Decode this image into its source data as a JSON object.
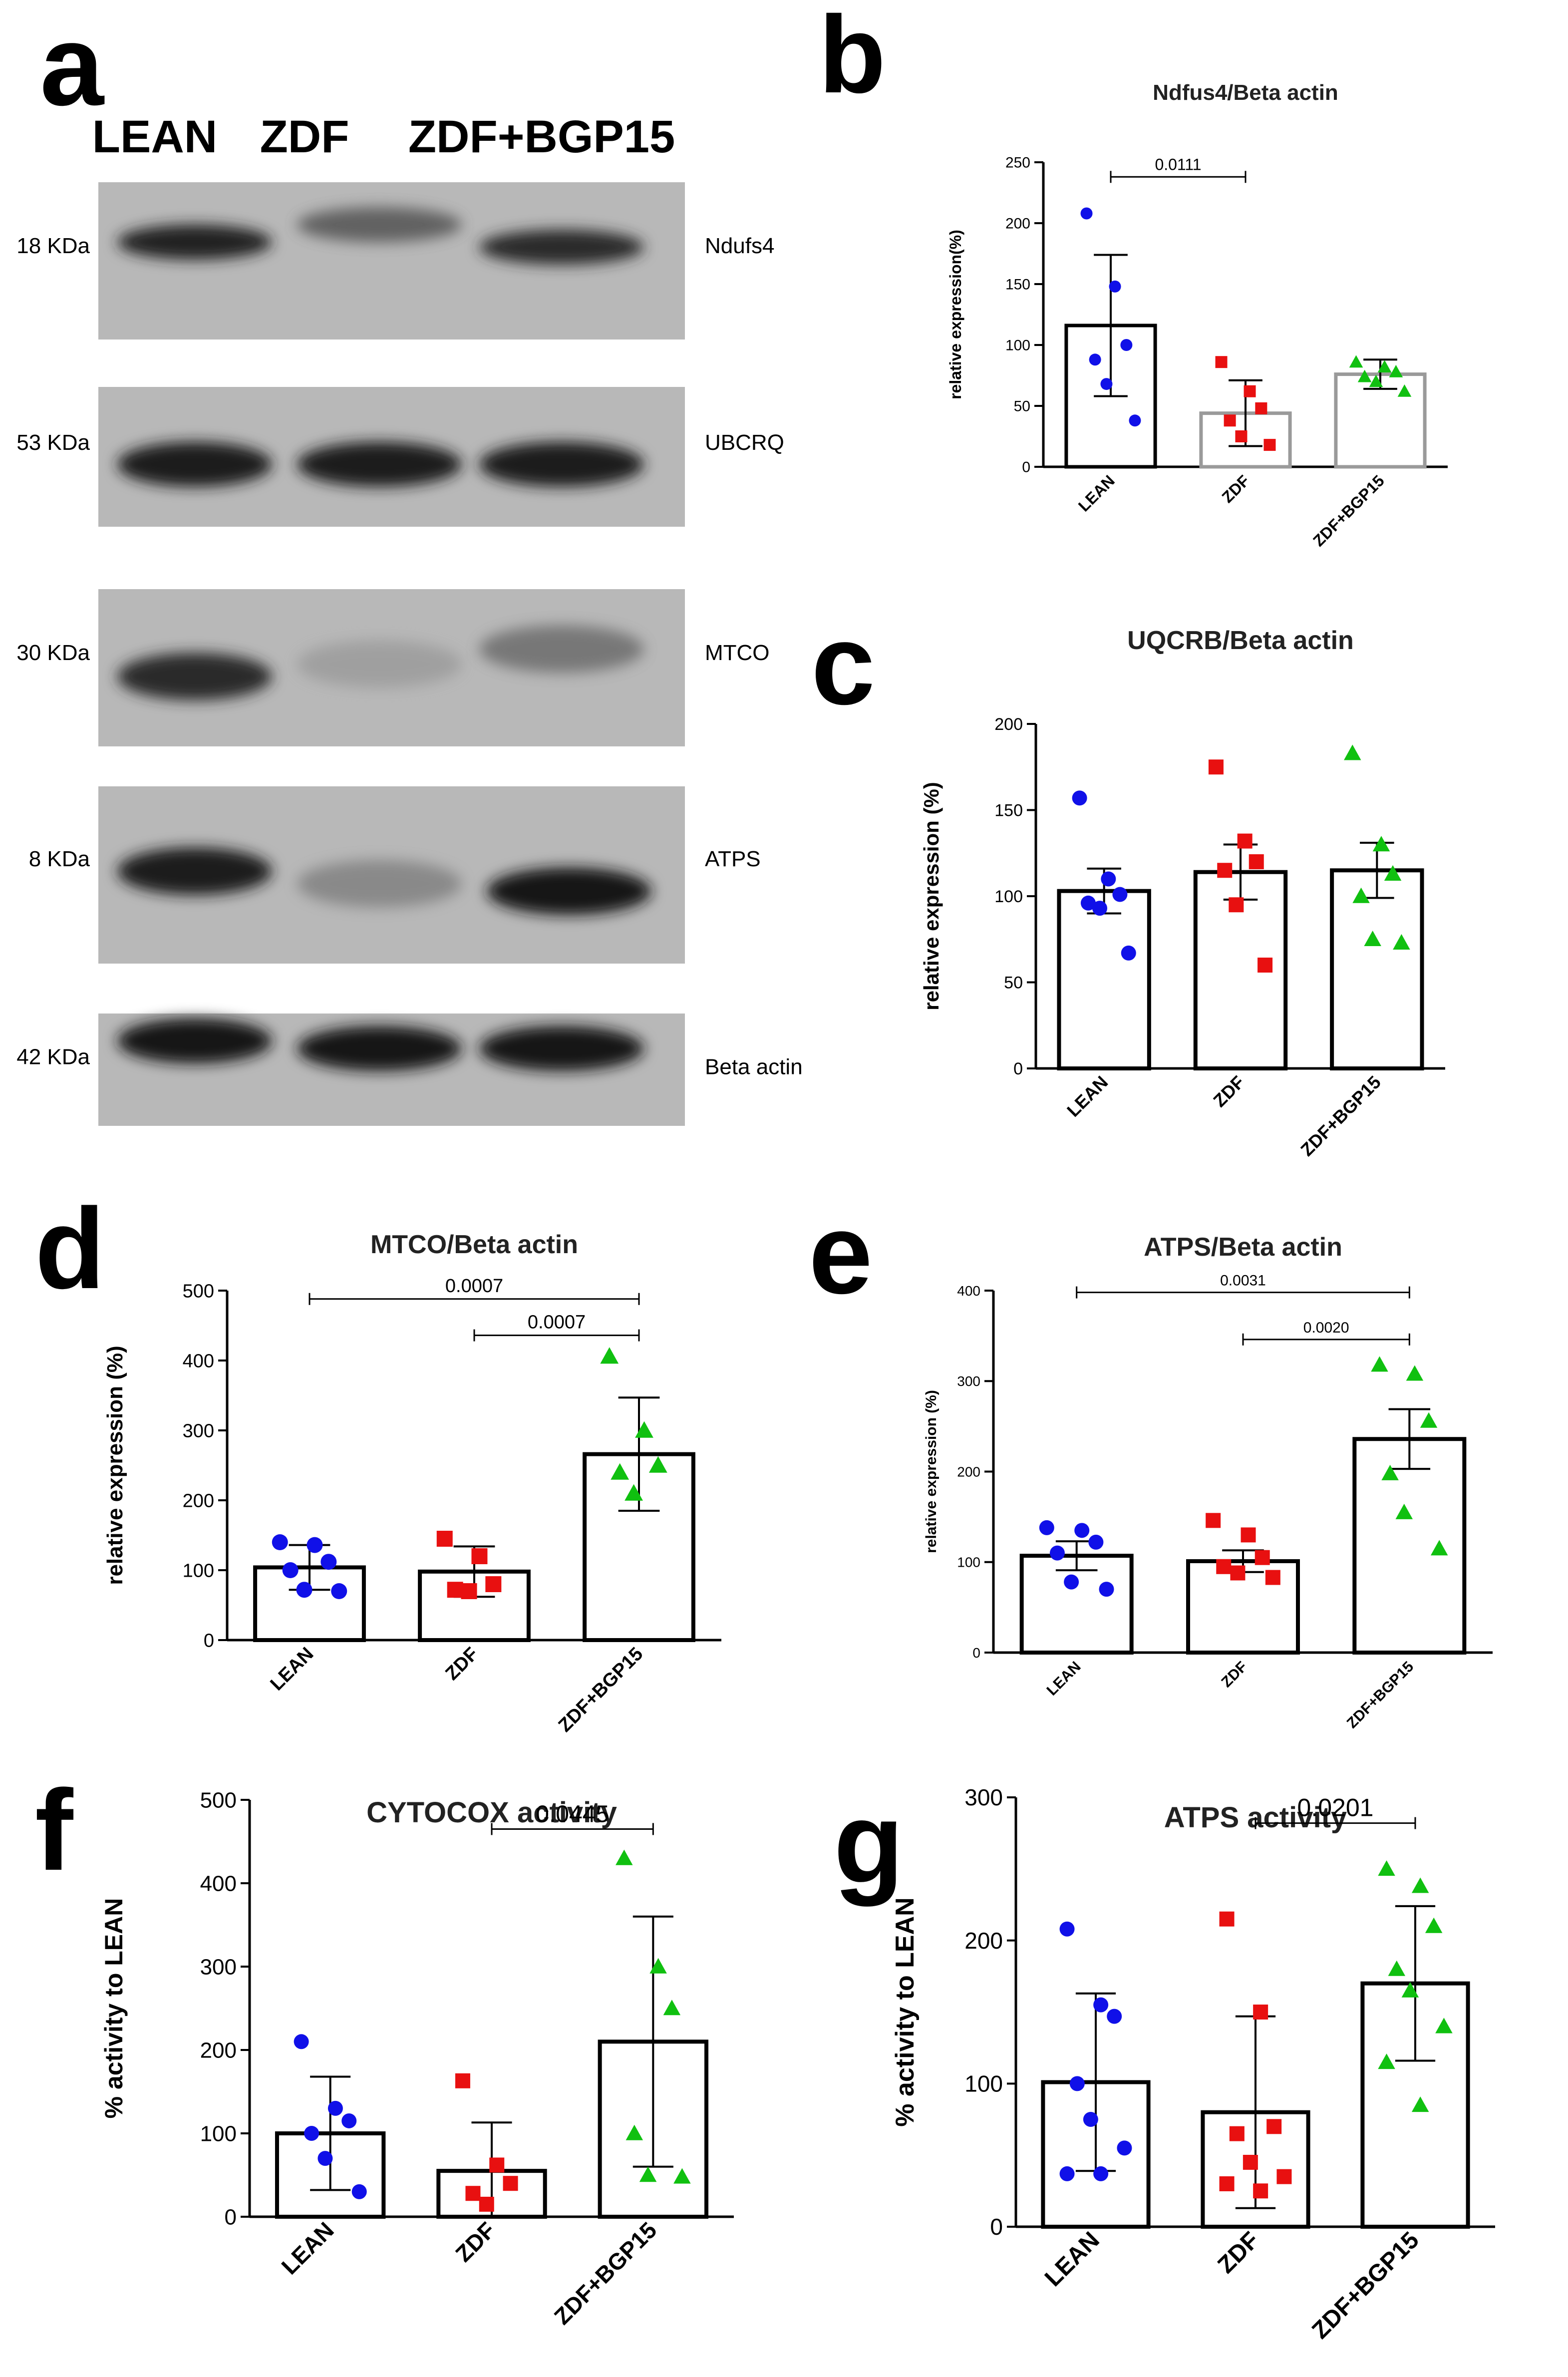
{
  "colors": {
    "lean": "#1010e8",
    "zdf": "#e81010",
    "bgp15": "#10c010",
    "bar_edge": "#000000",
    "bar_edge_light": "#9a9a9a",
    "blot_bg": "#b8b8b8"
  },
  "western_blot": {
    "panel_letter": "a",
    "lanes": [
      "LEAN",
      "ZDF",
      "ZDF+BGP15"
    ],
    "blots": [
      {
        "size": "18 KDa",
        "protein": "Ndufs4",
        "intensities": [
          0.9,
          0.55,
          0.85
        ]
      },
      {
        "size": "53 KDa",
        "protein": "UBCRQ",
        "intensities": [
          0.95,
          0.95,
          0.95
        ]
      },
      {
        "size": "30 KDa",
        "protein": "MTCO",
        "intensities": [
          0.85,
          0.2,
          0.45
        ]
      },
      {
        "size": "8 KDa",
        "protein": "ATPS",
        "intensities": [
          0.95,
          0.35,
          1.0
        ]
      },
      {
        "size": "42 KDa",
        "protein": "Beta actin",
        "intensities": [
          1.0,
          1.0,
          1.0
        ]
      }
    ]
  },
  "chart_data": [
    {
      "panel_letter": "b",
      "type": "bar",
      "title": "Ndfus4/Beta actin",
      "ylabel": "relative expression(%)",
      "categories": [
        "LEAN",
        "ZDF",
        "ZDF+BGP15"
      ],
      "ylim": [
        0,
        250
      ],
      "yticks": [
        0,
        50,
        100,
        150,
        200,
        250
      ],
      "values": [
        116,
        44,
        76
      ],
      "errors": [
        58,
        27,
        12
      ],
      "points": [
        [
          208,
          148,
          100,
          88,
          68,
          38
        ],
        [
          86,
          62,
          48,
          38,
          25,
          18
        ],
        [
          86,
          82,
          78,
          74,
          70,
          62
        ]
      ],
      "comparisons": [
        {
          "from": 0,
          "to": 1,
          "y": 238,
          "label": "0.0111"
        }
      ]
    },
    {
      "panel_letter": "c",
      "type": "bar",
      "title": "UQCRB/Beta actin",
      "ylabel": "relative expression (%)",
      "categories": [
        "LEAN",
        "ZDF",
        "ZDF+BGP15"
      ],
      "ylim": [
        0,
        200
      ],
      "yticks": [
        0,
        50,
        100,
        150,
        200
      ],
      "values": [
        103,
        114,
        115
      ],
      "errors": [
        13,
        16,
        16
      ],
      "points": [
        [
          157,
          110,
          101,
          96,
          93,
          67
        ],
        [
          175,
          132,
          120,
          115,
          95,
          60
        ],
        [
          183,
          130,
          113,
          100,
          75,
          73
        ]
      ],
      "comparisons": []
    },
    {
      "panel_letter": "d",
      "type": "bar",
      "title": "MTCO/Beta actin",
      "ylabel": "relative expression (%)",
      "categories": [
        "LEAN",
        "ZDF",
        "ZDF+BGP15"
      ],
      "ylim": [
        0,
        500
      ],
      "yticks": [
        0,
        100,
        200,
        300,
        400,
        500
      ],
      "values": [
        104,
        98,
        266
      ],
      "errors": [
        32,
        36,
        81
      ],
      "points": [
        [
          140,
          136,
          112,
          100,
          72,
          70
        ],
        [
          145,
          120,
          80,
          72,
          70
        ],
        [
          406,
          300,
          250,
          240,
          210
        ]
      ],
      "comparisons": [
        {
          "from": 0,
          "to": 2,
          "y": 488,
          "label": "0.0007"
        },
        {
          "from": 1,
          "to": 2,
          "y": 436,
          "label": "0.0007"
        }
      ]
    },
    {
      "panel_letter": "e",
      "type": "bar",
      "title": "ATPS/Beta actin",
      "ylabel": "relative expression (%)",
      "categories": [
        "LEAN",
        "ZDF",
        "ZDF+BGP15"
      ],
      "ylim": [
        0,
        400
      ],
      "yticks": [
        0,
        100,
        200,
        300,
        400
      ],
      "values": [
        107,
        101,
        236
      ],
      "errors": [
        16,
        12,
        33
      ],
      "points": [
        [
          138,
          135,
          122,
          110,
          78,
          70
        ],
        [
          146,
          130,
          105,
          95,
          88,
          83
        ],
        [
          318,
          308,
          256,
          198,
          155,
          115
        ]
      ],
      "comparisons": [
        {
          "from": 0,
          "to": 2,
          "y": 398,
          "label": "0.0031"
        },
        {
          "from": 1,
          "to": 2,
          "y": 346,
          "label": "0.0020"
        }
      ]
    },
    {
      "panel_letter": "f",
      "type": "bar",
      "title": "CYTOCOX activity",
      "ylabel": "% activity to LEAN",
      "categories": [
        "LEAN",
        "ZDF",
        "ZDF+BGP15"
      ],
      "ylim": [
        0,
        500
      ],
      "yticks": [
        0,
        100,
        200,
        300,
        400,
        500
      ],
      "values": [
        100,
        55,
        210
      ],
      "errors": [
        68,
        58,
        150
      ],
      "points": [
        [
          210,
          130,
          115,
          100,
          70,
          30
        ],
        [
          163,
          62,
          40,
          28,
          15
        ],
        [
          430,
          300,
          250,
          100,
          50,
          48
        ]
      ],
      "comparisons": [
        {
          "from": 1,
          "to": 2,
          "y": 465,
          "label": "0.0445"
        }
      ]
    },
    {
      "panel_letter": "g",
      "type": "bar",
      "title": "ATPS activity",
      "ylabel": "% activity to LEAN",
      "categories": [
        "LEAN",
        "ZDF",
        "ZDF+BGP15"
      ],
      "ylim": [
        0,
        300
      ],
      "yticks": [
        0,
        100,
        200,
        300
      ],
      "values": [
        101,
        80,
        170
      ],
      "errors": [
        62,
        67,
        54
      ],
      "points": [
        [
          208,
          155,
          147,
          100,
          75,
          55,
          37,
          37
        ],
        [
          215,
          150,
          70,
          65,
          45,
          35,
          30,
          25
        ],
        [
          250,
          238,
          210,
          180,
          165,
          140,
          115,
          85
        ]
      ],
      "comparisons": [
        {
          "from": 1,
          "to": 2,
          "y": 282,
          "label": "0.0201"
        }
      ]
    }
  ]
}
